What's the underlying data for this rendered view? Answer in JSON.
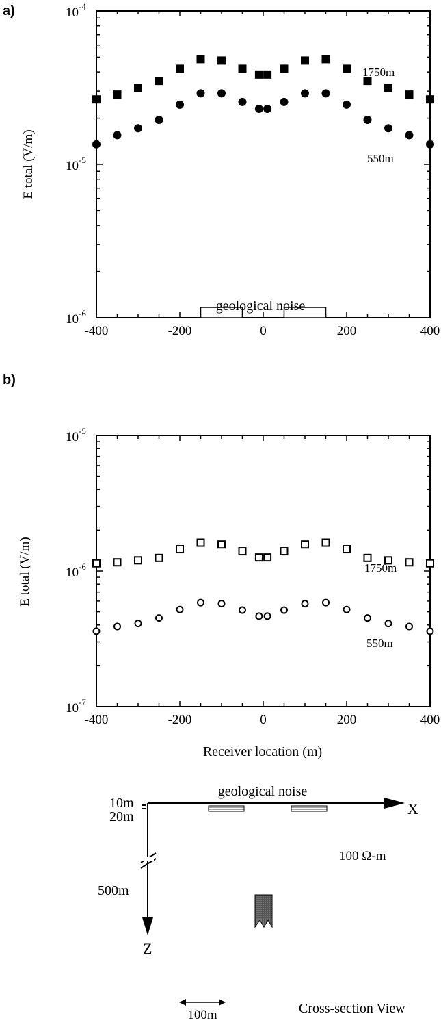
{
  "chart_data": [
    {
      "panel_label": "a)",
      "type": "scatter",
      "ylabel": "E total (V/m)",
      "xlim": [
        -400,
        400
      ],
      "ylim": [
        1e-06,
        0.0001
      ],
      "yscale": "log",
      "x_tick_labels": [
        "-400",
        "-200",
        "0",
        "200",
        "400"
      ],
      "y_tick_labels": [
        {
          "base": "10",
          "exp": "-4"
        },
        {
          "base": "10",
          "exp": "-5"
        },
        {
          "base": "10",
          "exp": "-6"
        }
      ],
      "annotation": "geological noise",
      "noise_blocks": [
        [
          -150,
          -50
        ],
        [
          50,
          150
        ]
      ],
      "series": [
        {
          "name": "1750m",
          "marker": "filled-square",
          "x": [
            -400,
            -350,
            -300,
            -250,
            -200,
            -150,
            -100,
            -50,
            -10,
            10,
            50,
            100,
            150,
            200,
            250,
            300,
            350,
            400
          ],
          "y": [
            2.65e-05,
            2.85e-05,
            3.15e-05,
            3.5e-05,
            4.2e-05,
            4.85e-05,
            4.75e-05,
            4.2e-05,
            3.85e-05,
            3.85e-05,
            4.2e-05,
            4.75e-05,
            4.85e-05,
            4.2e-05,
            3.5e-05,
            3.15e-05,
            2.85e-05,
            2.65e-05
          ]
        },
        {
          "name": "550m",
          "marker": "filled-circle",
          "x": [
            -400,
            -350,
            -300,
            -250,
            -200,
            -150,
            -100,
            -50,
            -10,
            10,
            50,
            100,
            150,
            200,
            250,
            300,
            350,
            400
          ],
          "y": [
            1.35e-05,
            1.55e-05,
            1.72e-05,
            1.95e-05,
            2.45e-05,
            2.9e-05,
            2.9e-05,
            2.55e-05,
            2.3e-05,
            2.3e-05,
            2.55e-05,
            2.9e-05,
            2.9e-05,
            2.45e-05,
            1.95e-05,
            1.72e-05,
            1.55e-05,
            1.35e-05
          ]
        }
      ]
    },
    {
      "panel_label": "b)",
      "type": "scatter",
      "ylabel": "E total (V/m)",
      "xlabel": "Receiver location (m)",
      "xlim": [
        -400,
        400
      ],
      "ylim": [
        1e-07,
        1e-05
      ],
      "yscale": "log",
      "x_tick_labels": [
        "-400",
        "-200",
        "0",
        "200",
        "400"
      ],
      "y_tick_labels": [
        {
          "base": "10",
          "exp": "-5"
        },
        {
          "base": "10",
          "exp": "-6"
        },
        {
          "base": "10",
          "exp": "-7"
        }
      ],
      "series": [
        {
          "name": "1750m",
          "marker": "open-square",
          "x": [
            -400,
            -350,
            -300,
            -250,
            -200,
            -150,
            -100,
            -50,
            -10,
            10,
            50,
            100,
            150,
            200,
            250,
            300,
            350,
            400
          ],
          "y": [
            1.14e-06,
            1.16e-06,
            1.2e-06,
            1.25e-06,
            1.45e-06,
            1.62e-06,
            1.57e-06,
            1.4e-06,
            1.26e-06,
            1.26e-06,
            1.4e-06,
            1.57e-06,
            1.62e-06,
            1.45e-06,
            1.25e-06,
            1.2e-06,
            1.16e-06,
            1.14e-06
          ]
        },
        {
          "name": "550m",
          "marker": "open-circle",
          "x": [
            -400,
            -350,
            -300,
            -250,
            -200,
            -150,
            -100,
            -50,
            -10,
            10,
            50,
            100,
            150,
            200,
            250,
            300,
            350,
            400
          ],
          "y": [
            3.6e-07,
            3.9e-07,
            4.1e-07,
            4.5e-07,
            5.2e-07,
            5.85e-07,
            5.75e-07,
            5.15e-07,
            4.65e-07,
            4.65e-07,
            5.15e-07,
            5.75e-07,
            5.85e-07,
            5.2e-07,
            4.5e-07,
            4.1e-07,
            3.9e-07,
            3.6e-07
          ]
        }
      ]
    }
  ],
  "cross_section": {
    "noise_label": "geological noise",
    "depth_10": "10m",
    "depth_20": "20m",
    "depth_500": "500m",
    "x_axis": "X",
    "z_axis": "Z",
    "resistivity": "100 Ω-m",
    "scale_label": "100m",
    "title": "Cross-section View"
  }
}
